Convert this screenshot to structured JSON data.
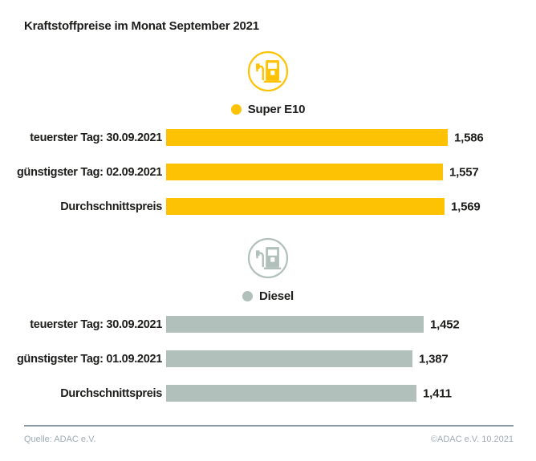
{
  "title": "Kraftstoffpreise im Monat September 2021",
  "colors": {
    "super_e10": "#FCC203",
    "diesel": "#B2C0BC",
    "footer_text": "#9EABB2",
    "footer_line": "#8A99A3",
    "text": "#1D1D1B"
  },
  "sections": [
    {
      "id": "super-e10",
      "legend_label": "Super E10",
      "color": "#FCC203",
      "icon": "fuel-pump-icon",
      "bars": [
        {
          "label": "teuerster Tag: 30.09.2021",
          "value": 1.586,
          "display": "1,586"
        },
        {
          "label": "günstigster Tag: 02.09.2021",
          "value": 1.557,
          "display": "1,557"
        },
        {
          "label": "Durchschnittspreis",
          "value": 1.569,
          "display": "1,569"
        }
      ]
    },
    {
      "id": "diesel",
      "legend_label": "Diesel",
      "color": "#B2C0BC",
      "icon": "fuel-pump-icon",
      "bars": [
        {
          "label": "teuerster Tag: 30.09.2021",
          "value": 1.452,
          "display": "1,452"
        },
        {
          "label": "günstigster Tag: 01.09.2021",
          "value": 1.387,
          "display": "1,387"
        },
        {
          "label": "Durchschnittspreis",
          "value": 1.411,
          "display": "1,411"
        }
      ]
    }
  ],
  "footer": {
    "source": "Quelle: ADAC e.V.",
    "copyright": "©ADAC e.V. 10.2021"
  },
  "chart_data": [
    {
      "type": "bar",
      "orientation": "horizontal",
      "title": "Super E10",
      "categories": [
        "teuerster Tag: 30.09.2021",
        "günstigster Tag: 02.09.2021",
        "Durchschnittspreis"
      ],
      "values": [
        1.586,
        1.557,
        1.569
      ],
      "value_labels": [
        "1,586",
        "1,557",
        "1,569"
      ],
      "bar_color": "#FCC203",
      "xlim": [
        0,
        1.7
      ],
      "grid": false,
      "legend_position": "top-center",
      "value_label_position": "right-of-bar"
    },
    {
      "type": "bar",
      "orientation": "horizontal",
      "title": "Diesel",
      "categories": [
        "teuerster Tag: 30.09.2021",
        "günstigster Tag: 01.09.2021",
        "Durchschnittspreis"
      ],
      "values": [
        1.452,
        1.387,
        1.411
      ],
      "value_labels": [
        "1,452",
        "1,387",
        "1,411"
      ],
      "bar_color": "#B2C0BC",
      "xlim": [
        0,
        1.7
      ],
      "grid": false,
      "legend_position": "top-center",
      "value_label_position": "right-of-bar"
    }
  ]
}
